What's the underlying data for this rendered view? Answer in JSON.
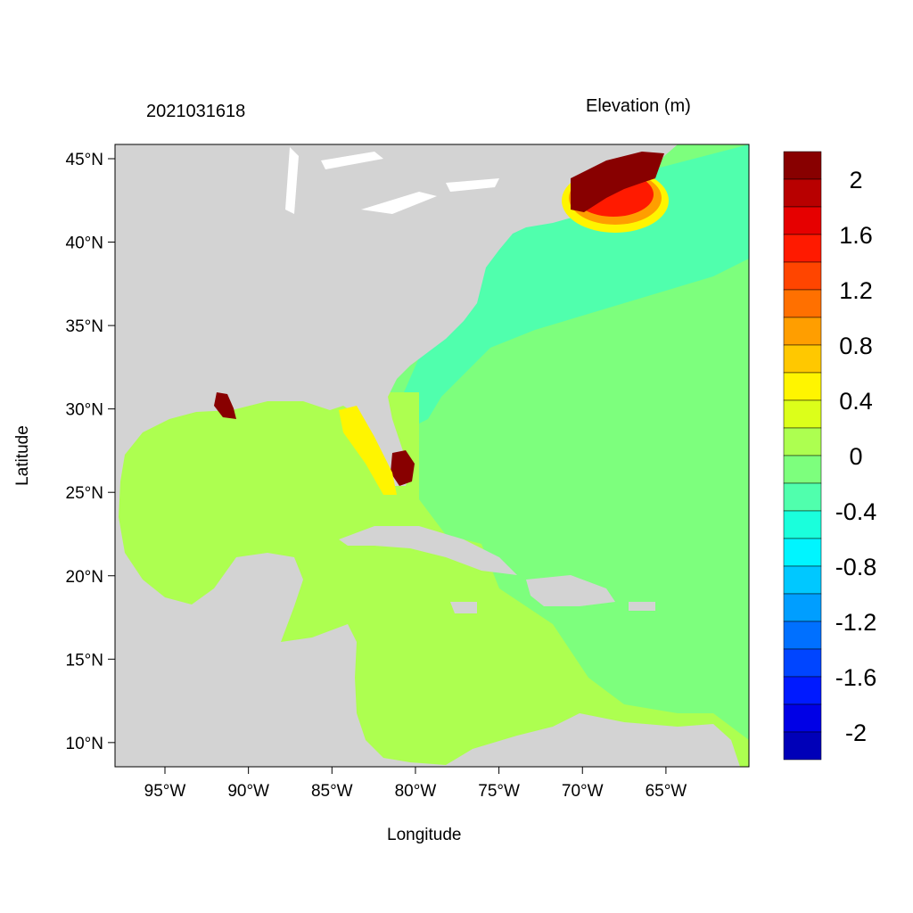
{
  "title_left": "2021031618",
  "title_right": "Elevation (m)",
  "xlabel": "Longitude",
  "ylabel": "Latitude",
  "map": {
    "projection": "lat-lon",
    "lon_range": [
      -98,
      -60
    ],
    "lat_range": [
      8.6,
      45.8
    ],
    "land_color": "#d3d3d3",
    "lon_ticks": [
      {
        "value": -95,
        "label": "95°W"
      },
      {
        "value": -90,
        "label": "90°W"
      },
      {
        "value": -85,
        "label": "85°W"
      },
      {
        "value": -80,
        "label": "80°W"
      },
      {
        "value": -75,
        "label": "75°W"
      },
      {
        "value": -70,
        "label": "70°W"
      },
      {
        "value": -65,
        "label": "65°W"
      }
    ],
    "lat_ticks": [
      {
        "value": 45,
        "label": "45°N"
      },
      {
        "value": 40,
        "label": "40°N"
      },
      {
        "value": 35,
        "label": "35°N"
      },
      {
        "value": 30,
        "label": "30°N"
      },
      {
        "value": 25,
        "label": "25°N"
      },
      {
        "value": 20,
        "label": "20°N"
      },
      {
        "value": 15,
        "label": "15°N"
      },
      {
        "value": 10,
        "label": "10°N"
      }
    ]
  },
  "colorbar": {
    "levels_min": -2.0,
    "levels_max": 2.0,
    "step": 0.2,
    "colors": [
      "#880000",
      "#b80000",
      "#e60000",
      "#ff1a00",
      "#ff4500",
      "#ff7000",
      "#ff9e00",
      "#ffc800",
      "#fff500",
      "#dcff1a",
      "#adff50",
      "#7dff7d",
      "#50ffad",
      "#1affdc",
      "#00f5ff",
      "#00c8ff",
      "#009eff",
      "#0070ff",
      "#0045ff",
      "#001aff",
      "#0000e6",
      "#0000b8"
    ],
    "labels": [
      {
        "value": 2,
        "label": "2"
      },
      {
        "value": 1.6,
        "label": "1.6"
      },
      {
        "value": 1.2,
        "label": "1.2"
      },
      {
        "value": 0.8,
        "label": "0.8"
      },
      {
        "value": 0.4,
        "label": "0.4"
      },
      {
        "value": 0,
        "label": "0"
      },
      {
        "value": -0.4,
        "label": "-0.4"
      },
      {
        "value": -0.8,
        "label": "-0.8"
      },
      {
        "value": -1.2,
        "label": "-1.2"
      },
      {
        "value": -1.6,
        "label": "-1.6"
      },
      {
        "value": -2,
        "label": "-2"
      }
    ]
  }
}
